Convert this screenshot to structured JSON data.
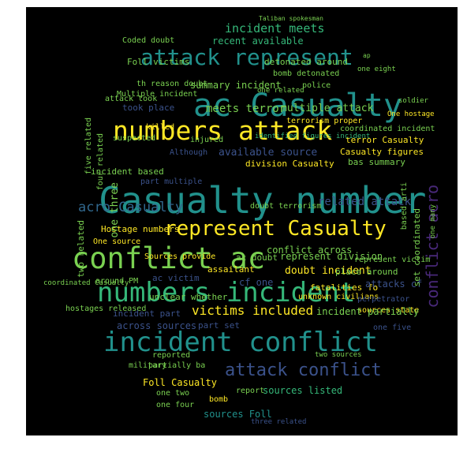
{
  "palette": {
    "yellow": "#fde725",
    "light_green": "#7ad151",
    "teal": "#21918c",
    "sea_green": "#35b779",
    "blue": "#3b528b",
    "light_blue": "#31688e",
    "purple": "#482878",
    "dark_purple": "#440154"
  },
  "words": [
    "Casualty number",
    "ac Casualty",
    "attack represent",
    "numbers attack",
    "conflict ac",
    "numbers incident",
    "incident conflict",
    "represent Casualty",
    "acro Casualty",
    "conflict acro",
    "attack conflict",
    "victims included",
    "incident meets",
    "recent available",
    "Coded doubt",
    "summary incident",
    "th reason doubt",
    "Multiple incident",
    "took place",
    "meets terror",
    "multiple attack",
    "coordinated incident",
    "terror Casualty",
    "Casualty figures",
    "bas summary",
    "available source",
    "incident based",
    "division Casualty",
    "part multiple",
    "related attack",
    "doubt terrorism",
    "Hostage numbers",
    "One source",
    "Sources provide",
    "represent division",
    "conflict across",
    "doubt incident",
    "around PM",
    "hostages released",
    "ac victim",
    "cf one",
    "fatalities fo",
    "unknown civilians",
    "place around",
    "attacks cf",
    "perpetrator",
    "sources state",
    "incident partially",
    "across sources",
    "incident part",
    "part set",
    "one five",
    "Foll Casualty",
    "partially ba",
    "one two",
    "one four",
    "sources listed",
    "sources Foll",
    "bomb",
    "report",
    "assailant",
    "represent victim",
    "ac doubt",
    "two related",
    "set coordinated",
    "based arti",
    "five related",
    "four related",
    "one three",
    "killed",
    "injured",
    "suspected",
    "terrorism proper",
    "detonated around",
    "bomb detonated",
    "police",
    "Although",
    "attack took",
    "Foll victims",
    "one related",
    "One hostage",
    "Taliban spokesman",
    "soldier",
    "identified figures incident",
    "unclear whether",
    "reported",
    "military",
    "two sources",
    "one many",
    "three related",
    "coordinated Casualty",
    "ap",
    "one eight",
    "shot"
  ]
}
